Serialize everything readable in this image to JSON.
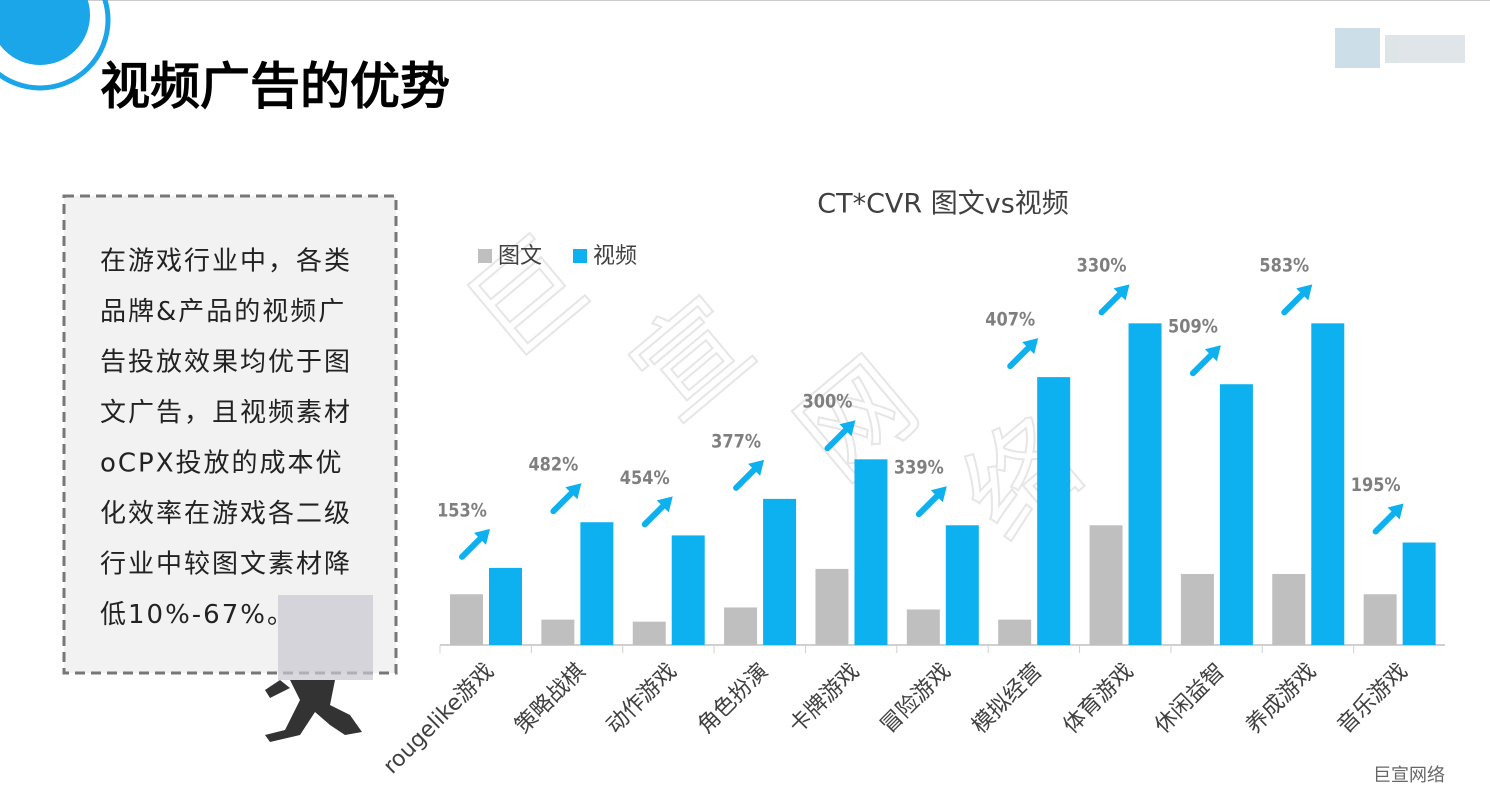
{
  "header": {
    "title": "视频广告的优势",
    "logo_text": "巨宣网络"
  },
  "body_lines": [
    "在游戏行业中，各类",
    "品牌&产品的视频广",
    "告投放效果均优于图",
    "文广告，且视频素材",
    "oCPX投放的成本优",
    "化效率在游戏各二级",
    "行业中较图文素材降",
    "低10%-67%。"
  ],
  "watermark": [
    "巨",
    "宣",
    "网",
    "络"
  ],
  "chart_data": {
    "type": "bar",
    "title": "CT*CVR 图文vs视频",
    "categories": [
      "rougelike游戏",
      "策略战棋",
      "动作游戏",
      "角色扮演",
      "卡牌游戏",
      "冒险游戏",
      "模拟经营",
      "体育游戏",
      "休闲益智",
      "养成游戏",
      "音乐游戏"
    ],
    "series": [
      {
        "name": "图文",
        "color": "#bfbfbf",
        "values": [
          50,
          25,
          23,
          37,
          75,
          35,
          25,
          118,
          70,
          70,
          50
        ]
      },
      {
        "name": "视频",
        "color": "#0eb1ef",
        "values": [
          76,
          121,
          108,
          144,
          183,
          118,
          264,
          317,
          257,
          317,
          101
        ]
      }
    ],
    "uplift_values": [
      153,
      482,
      454,
      377,
      300,
      339,
      407,
      330,
      509,
      583,
      195
    ],
    "uplift_labels": [
      "153%",
      "482%",
      "454%",
      "377%",
      "300%",
      "339%",
      "407%",
      "330%",
      "509%",
      "583%",
      "195%"
    ],
    "ylim": [
      0,
      340
    ],
    "legend": "top-left"
  }
}
